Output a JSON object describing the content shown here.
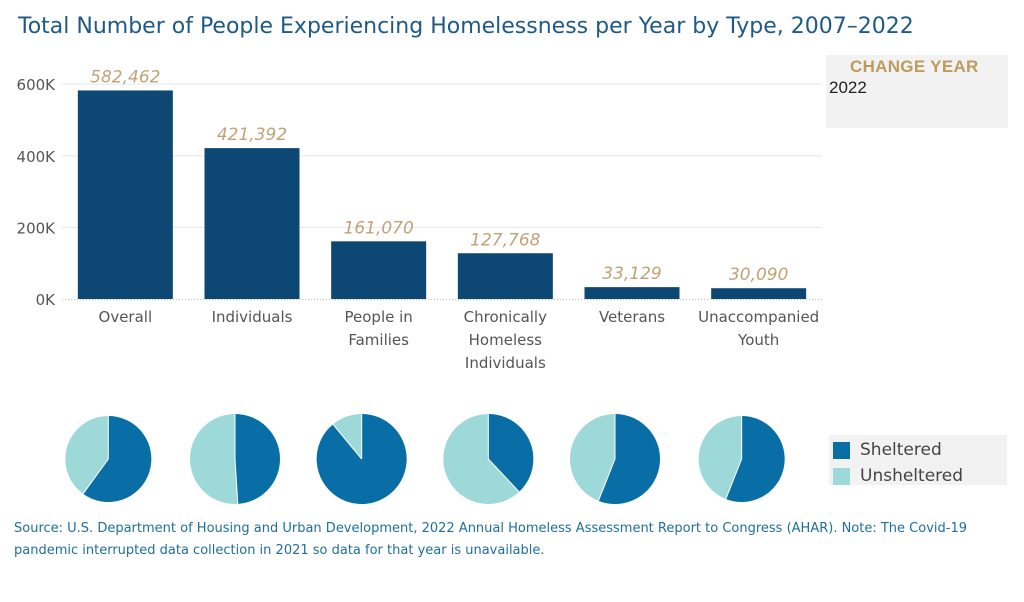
{
  "title": "Total Number of People Experiencing Homelessness per Year by Type, 2007–2022",
  "change_year": {
    "label": "CHANGE YEAR",
    "value": "2022"
  },
  "legend": [
    {
      "label": "Sheltered",
      "color": "#0a6ea6"
    },
    {
      "label": "Unsheltered",
      "color": "#9ed9da"
    }
  ],
  "source": "Source: U.S. Department of Housing and Urban Development, 2022 Annual Homeless Assessment Report to Congress (AHAR). Note: The Covid-19 pandemic interrupted data collection in 2021 so data for that year is unavailable.",
  "colors": {
    "bar": "#0d4773",
    "data_label": "#c2a277",
    "accent": "#bd9a5f",
    "sheltered": "#0a6ea6",
    "unsheltered": "#9ed9da"
  },
  "chart_data": [
    {
      "type": "bar",
      "title": "",
      "categories": [
        [
          "Overall"
        ],
        [
          "Individuals"
        ],
        [
          "People in",
          "Families"
        ],
        [
          "Chronically",
          "Homeless",
          "Individuals"
        ],
        [
          "Veterans"
        ],
        [
          "Unaccompanied",
          "Youth"
        ]
      ],
      "values": [
        582462,
        421392,
        161070,
        127768,
        33129,
        30090
      ],
      "data_labels": [
        "582,462",
        "421,392",
        "161,070",
        "127,768",
        "33,129",
        "30,090"
      ],
      "yticks": [
        0,
        200000,
        400000,
        600000
      ],
      "ytick_labels": [
        "0K",
        "200K",
        "400K",
        "600K"
      ],
      "ylim": [
        0,
        620000
      ],
      "grid": true
    },
    {
      "type": "pie",
      "categories": [
        "Overall",
        "Individuals",
        "People in Families",
        "Chronically Homeless Individuals",
        "Veterans",
        "Unaccompanied Youth"
      ],
      "series": [
        {
          "name": "Sheltered",
          "values": [
            0.6,
            0.49,
            0.89,
            0.38,
            0.56,
            0.56
          ]
        },
        {
          "name": "Unsheltered",
          "values": [
            0.4,
            0.51,
            0.11,
            0.62,
            0.44,
            0.44
          ]
        }
      ]
    }
  ]
}
